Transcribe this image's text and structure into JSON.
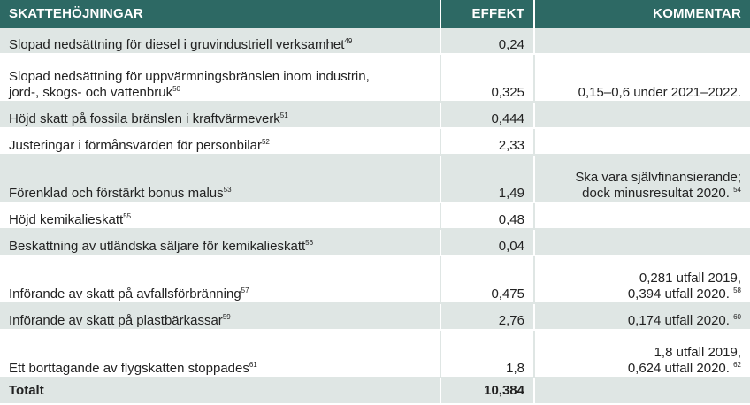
{
  "header": {
    "col1": "SKATTEHÖJNINGAR",
    "col2": "EFFEKT",
    "col3": "KOMMENTAR"
  },
  "rows": [
    {
      "measure": "Slopad nedsättning för diesel i gruvindustriell verksamhet",
      "note": "49",
      "effect": "0,24",
      "comment": ""
    },
    {
      "measure": "Slopad nedsättning för uppvärmningsbränslen inom industrin,\njord-, skogs- och vattenbruk",
      "note": "50",
      "effect": "0,325",
      "comment": "0,15–0,6 under 2021–2022."
    },
    {
      "measure": "Höjd skatt på fossila bränslen i kraftvärmeverk",
      "note": "51",
      "effect": "0,444",
      "comment": ""
    },
    {
      "measure": "Justeringar i förmånsvärden för personbilar",
      "note": "52",
      "effect": "2,33",
      "comment": ""
    },
    {
      "measure": "Förenklad och förstärkt bonus malus",
      "note": "53",
      "effect": "1,49",
      "comment": "Ska vara självfinansierande;\ndock minusresultat 2020.",
      "comment_note": "54"
    },
    {
      "measure": "Höjd kemikalieskatt",
      "note": "55",
      "effect": "0,48",
      "comment": ""
    },
    {
      "measure": "Beskattning av utländska säljare för kemikalieskatt",
      "note": "56",
      "effect": "0,04",
      "comment": ""
    },
    {
      "measure": "Införande av skatt på avfallsförbränning",
      "note": "57",
      "effect": "0,475",
      "comment": "0,281 utfall 2019,\n0,394 utfall 2020.",
      "comment_note": "58"
    },
    {
      "measure": "Införande av skatt på plastbärkassar",
      "note": "59",
      "effect": "2,76",
      "comment": "0,174 utfall 2020.",
      "comment_note": "60"
    },
    {
      "measure": "Ett borttagande av flygskatten stoppades",
      "note": "61",
      "effect": "1,8",
      "comment": "1,8 utfall 2019,\n0,624 utfall 2020.",
      "comment_note": "62"
    }
  ],
  "total": {
    "label": "Totalt",
    "effect": "10,384",
    "comment": ""
  }
}
